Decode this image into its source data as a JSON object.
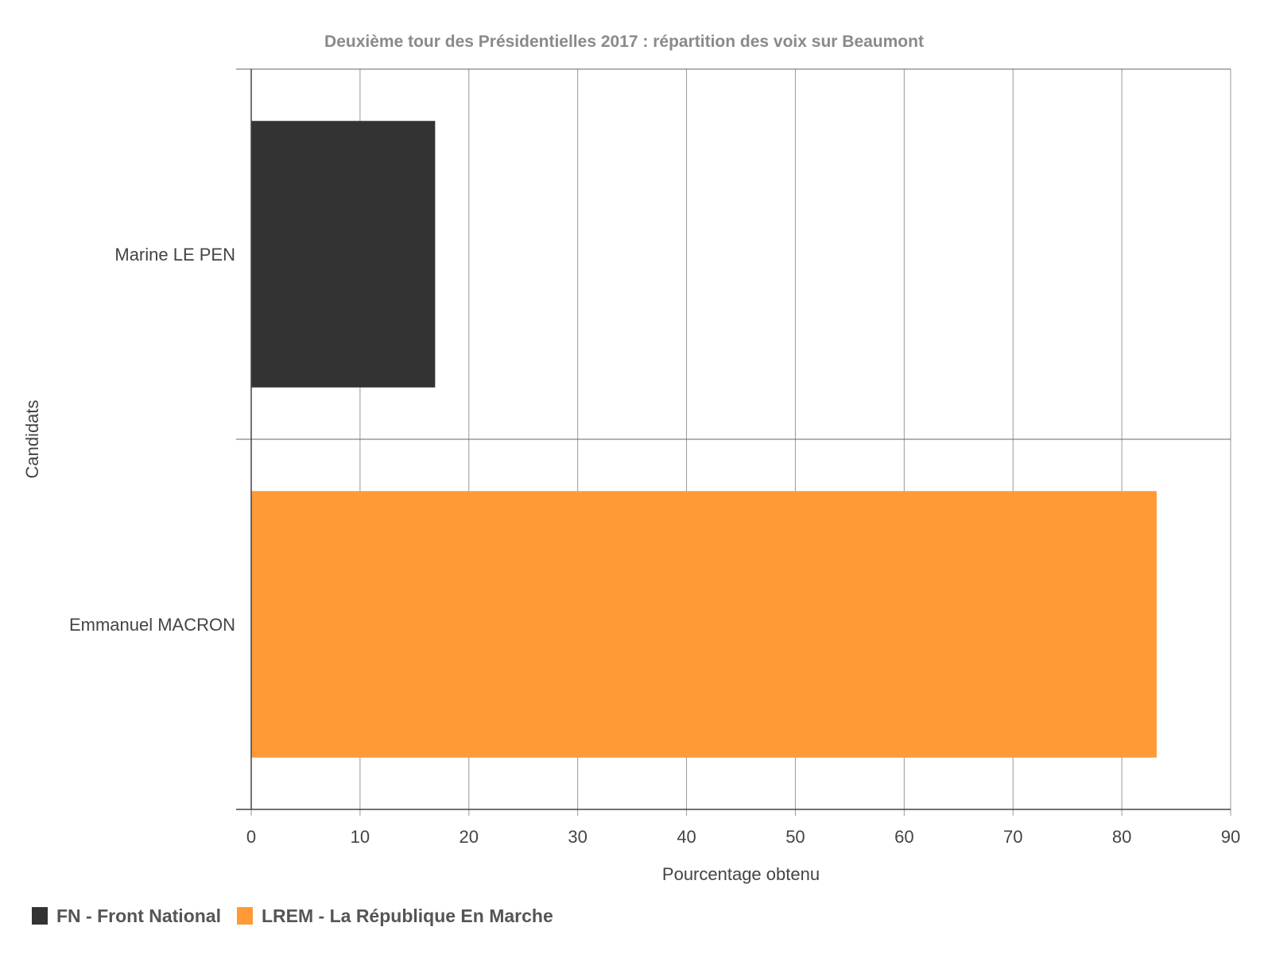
{
  "chart_data": {
    "type": "bar",
    "orientation": "horizontal",
    "title": "Deuxième tour des Présidentielles 2017 : répartition des voix sur Beaumont",
    "xlabel": "Pourcentage obtenu",
    "ylabel": "Candidats",
    "xlim": [
      0,
      90
    ],
    "xticks": [
      "0",
      "10",
      "20",
      "30",
      "40",
      "50",
      "60",
      "70",
      "80",
      "90"
    ],
    "grid": true,
    "legend_position": "bottom-left",
    "categories": [
      "Marine LE PEN",
      "Emmanuel MACRON"
    ],
    "series": [
      {
        "name": "FN - Front National",
        "color": "#333333",
        "values": [
          16.9,
          0
        ]
      },
      {
        "name": "LREM - La République En Marche",
        "color": "#ff9a37",
        "values": [
          0,
          83.2
        ]
      }
    ],
    "bars": [
      {
        "category": "Marine LE PEN",
        "value": 16.9,
        "series": "FN - Front National",
        "color": "#333333"
      },
      {
        "category": "Emmanuel MACRON",
        "value": 83.2,
        "series": "LREM - La République En Marche",
        "color": "#ff9a37"
      }
    ]
  }
}
